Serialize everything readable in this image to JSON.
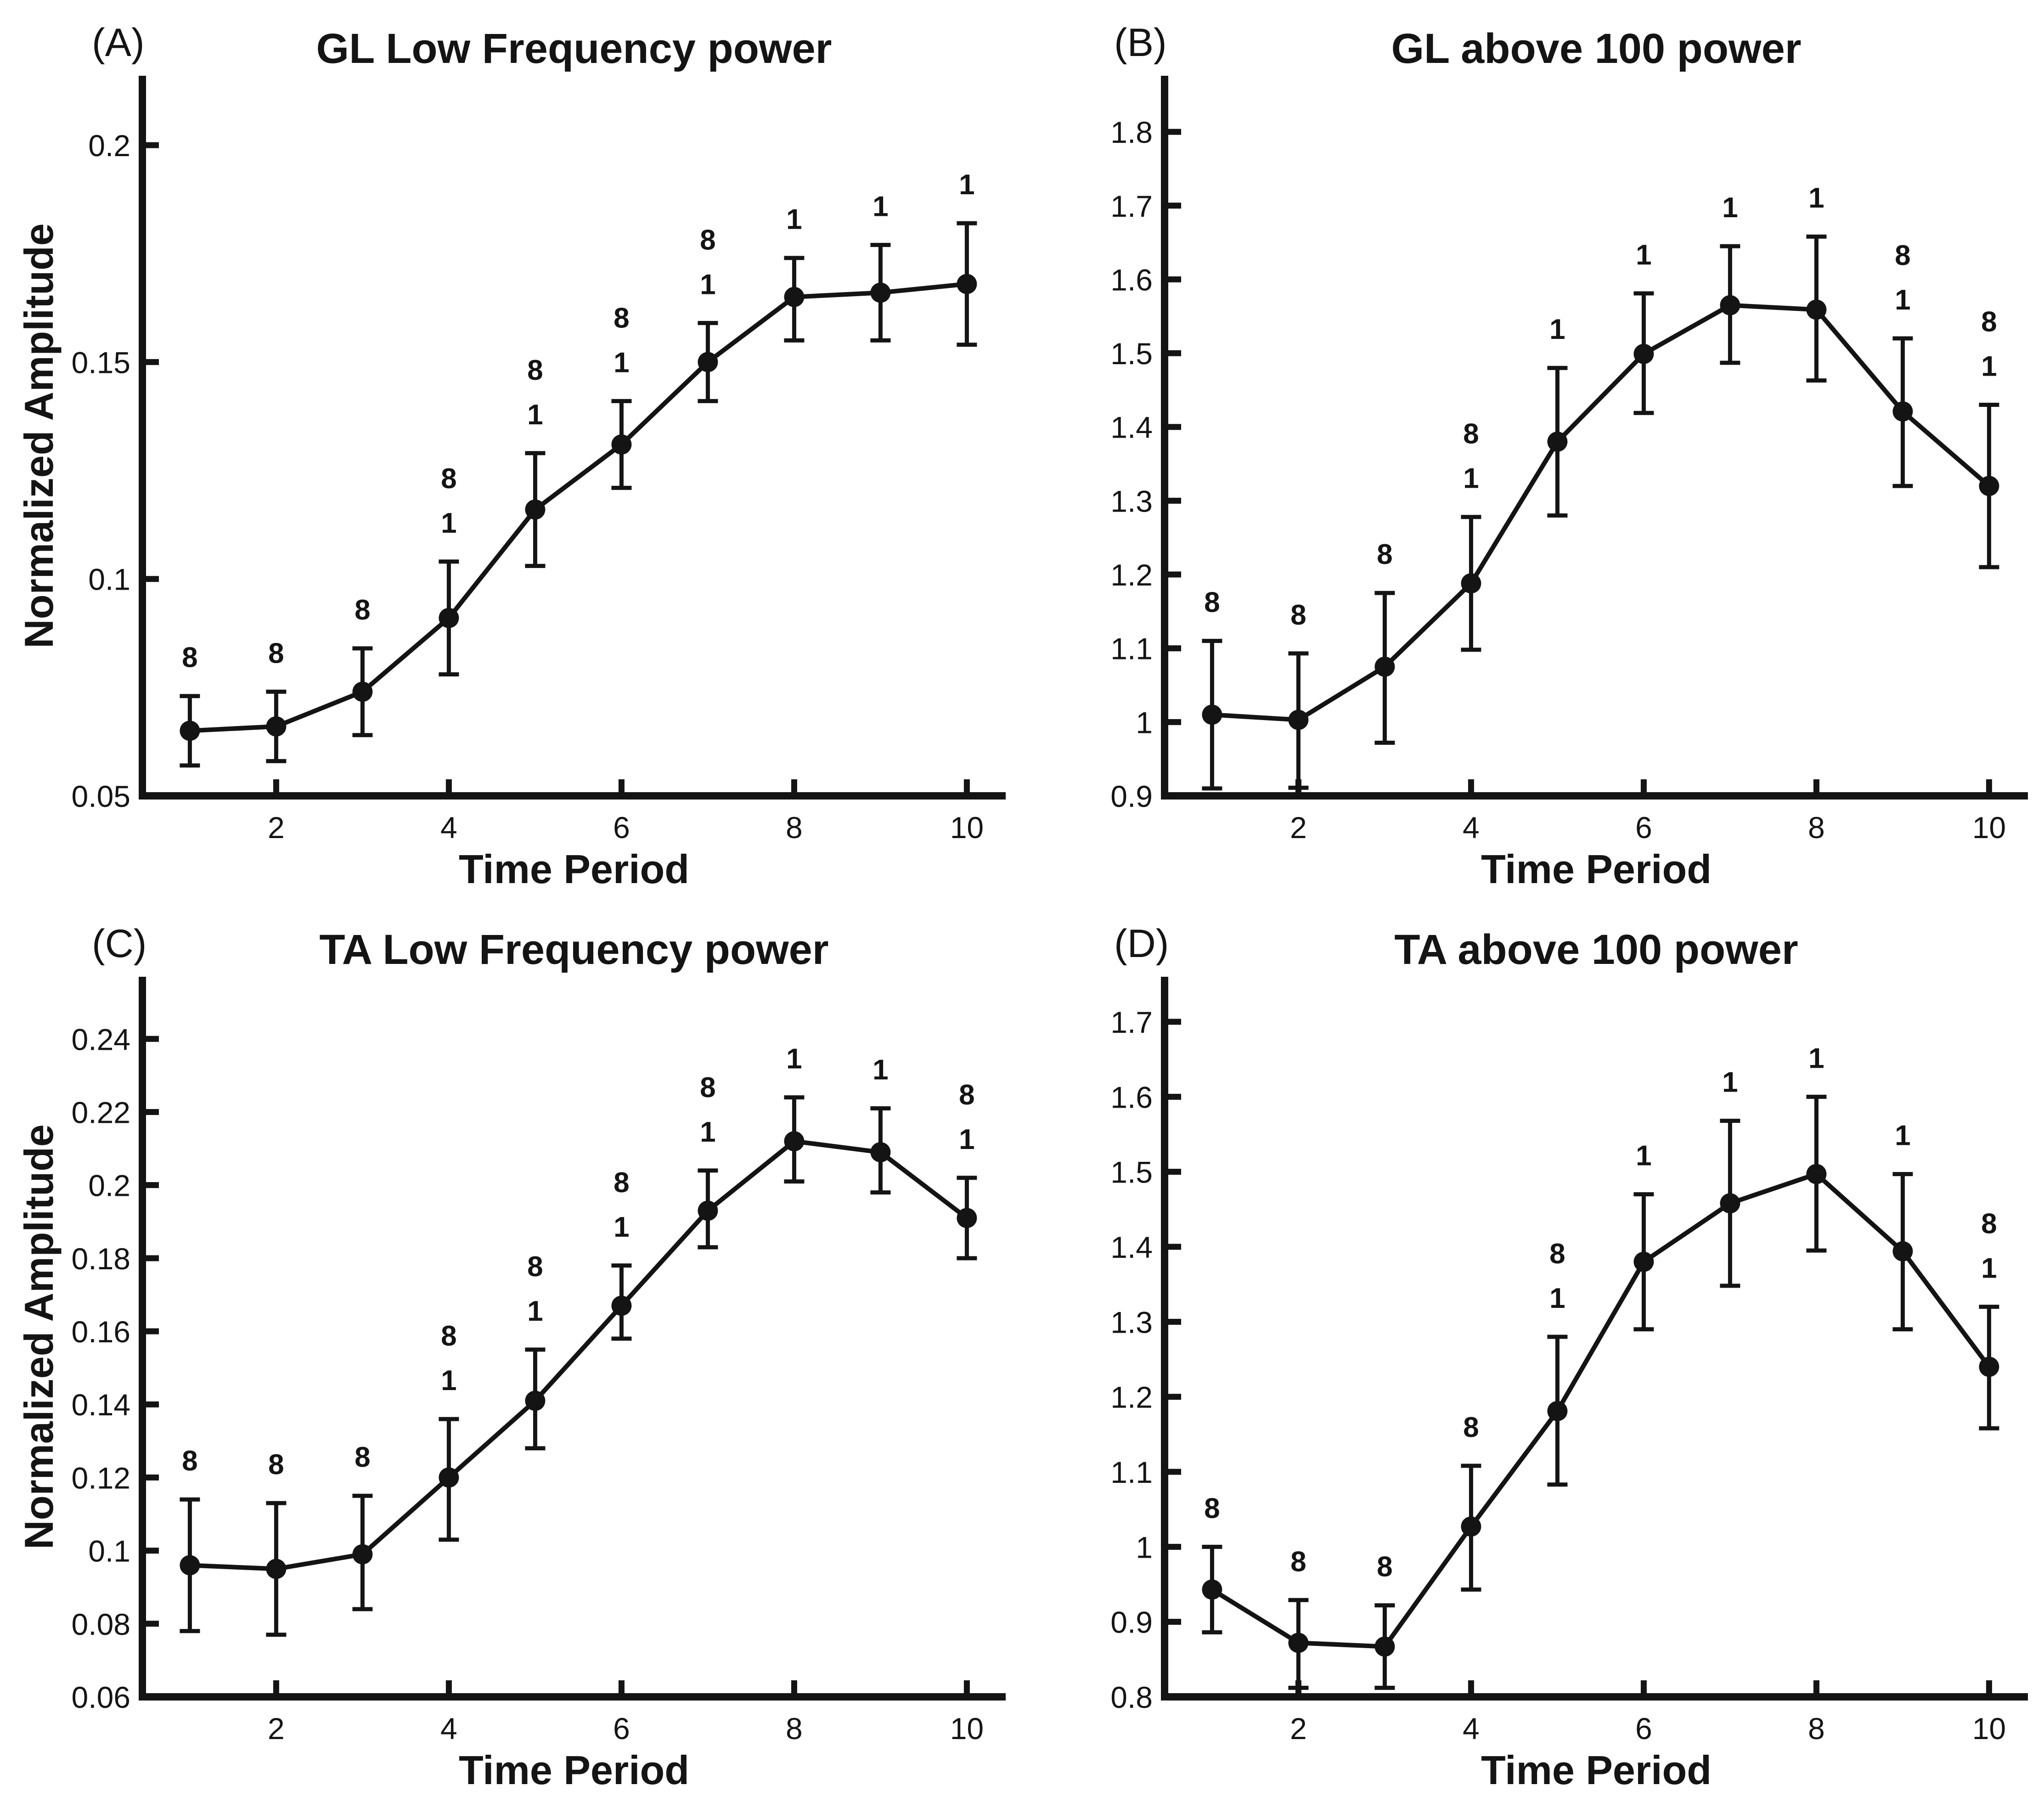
{
  "figure": {
    "background": "#ffffff",
    "ink_color": "#141414",
    "x_axis_label": "Time Period",
    "y_axis_label": "Normalized Amplitude",
    "x_values": [
      1,
      2,
      3,
      4,
      5,
      6,
      7,
      8,
      9,
      10
    ],
    "x_ticks": [
      2,
      4,
      6,
      8,
      10
    ],
    "x_tick_labels": [
      "2",
      "4",
      "6",
      "8",
      "10"
    ]
  },
  "chart_data": [
    {
      "type": "line",
      "panel": "A",
      "letter": "(A)",
      "title": "GL Low Frequency power",
      "xlabel": "Time Period",
      "ylabel": "Normalized Amplitude",
      "x": [
        1,
        2,
        3,
        4,
        5,
        6,
        7,
        8,
        9,
        10
      ],
      "values": [
        0.065,
        0.066,
        0.074,
        0.091,
        0.116,
        0.131,
        0.15,
        0.165,
        0.166,
        0.168
      ],
      "err_up": [
        0.008,
        0.008,
        0.01,
        0.013,
        0.013,
        0.01,
        0.009,
        0.009,
        0.011,
        0.014
      ],
      "err_down": [
        0.008,
        0.008,
        0.01,
        0.013,
        0.013,
        0.01,
        0.009,
        0.01,
        0.011,
        0.014
      ],
      "annotations": [
        [
          "8"
        ],
        [
          "8"
        ],
        [
          "8"
        ],
        [
          "8",
          "1"
        ],
        [
          "8",
          "1"
        ],
        [
          "8",
          "1"
        ],
        [
          "8",
          "1"
        ],
        [
          "1"
        ],
        [
          "1"
        ],
        [
          "1"
        ]
      ],
      "ylim": [
        0.05,
        0.216
      ],
      "yticks": [
        0.05,
        0.1,
        0.15,
        0.2
      ],
      "ytick_labels": [
        "0.05",
        "0.1",
        "0.15",
        "0.2"
      ],
      "grid": false,
      "legend": "none",
      "marker": "filled-circle",
      "error_bars": true
    },
    {
      "type": "line",
      "panel": "B",
      "letter": "(B)",
      "title": "GL above 100 power",
      "xlabel": "Time Period",
      "ylabel": "",
      "x": [
        1,
        2,
        3,
        4,
        5,
        6,
        7,
        8,
        9,
        10
      ],
      "values": [
        1.01,
        1.003,
        1.075,
        1.188,
        1.38,
        1.499,
        1.565,
        1.559,
        1.421,
        1.32
      ],
      "err_up": [
        0.1,
        0.09,
        0.1,
        0.09,
        0.1,
        0.082,
        0.08,
        0.099,
        0.099,
        0.11
      ],
      "err_down": [
        0.1,
        0.092,
        0.103,
        0.09,
        0.1,
        0.08,
        0.078,
        0.096,
        0.101,
        0.11
      ],
      "annotations": [
        [
          "8"
        ],
        [
          "8"
        ],
        [
          "8"
        ],
        [
          "8",
          "1"
        ],
        [
          "1"
        ],
        [
          "1"
        ],
        [
          "1"
        ],
        [
          "1"
        ],
        [
          "8",
          "1"
        ],
        [
          "8",
          "1"
        ]
      ],
      "ylim": [
        0.9,
        1.876
      ],
      "yticks": [
        0.9,
        1.0,
        1.1,
        1.2,
        1.3,
        1.4,
        1.5,
        1.6,
        1.7,
        1.8
      ],
      "ytick_labels": [
        "0.9",
        "1",
        "1.1",
        "1.2",
        "1.3",
        "1.4",
        "1.5",
        "1.6",
        "1.7",
        "1.8"
      ],
      "grid": false,
      "legend": "none",
      "marker": "filled-circle",
      "error_bars": true
    },
    {
      "type": "line",
      "panel": "C",
      "letter": "(C)",
      "title": "TA Low Frequency power",
      "xlabel": "Time Period",
      "ylabel": "Normalized Amplitude",
      "x": [
        1,
        2,
        3,
        4,
        5,
        6,
        7,
        8,
        9,
        10
      ],
      "values": [
        0.096,
        0.095,
        0.099,
        0.12,
        0.141,
        0.167,
        0.193,
        0.212,
        0.209,
        0.191
      ],
      "err_up": [
        0.018,
        0.018,
        0.016,
        0.016,
        0.014,
        0.011,
        0.011,
        0.012,
        0.012,
        0.011
      ],
      "err_down": [
        0.018,
        0.018,
        0.015,
        0.017,
        0.013,
        0.009,
        0.01,
        0.011,
        0.011,
        0.011
      ],
      "annotations": [
        [
          "8"
        ],
        [
          "8"
        ],
        [
          "8"
        ],
        [
          "8",
          "1"
        ],
        [
          "8",
          "1"
        ],
        [
          "8",
          "1"
        ],
        [
          "8",
          "1"
        ],
        [
          "1"
        ],
        [
          "1"
        ],
        [
          "8",
          "1"
        ]
      ],
      "ylim": [
        0.06,
        0.257
      ],
      "yticks": [
        0.06,
        0.08,
        0.1,
        0.12,
        0.14,
        0.16,
        0.18,
        0.2,
        0.22,
        0.24
      ],
      "ytick_labels": [
        "0.06",
        "0.08",
        "0.1",
        "0.12",
        "0.14",
        "0.16",
        "0.18",
        "0.2",
        "0.22",
        "0.24"
      ],
      "grid": false,
      "legend": "none",
      "marker": "filled-circle",
      "error_bars": true
    },
    {
      "type": "line",
      "panel": "D",
      "letter": "(D)",
      "title": "TA above 100 power",
      "xlabel": "Time Period",
      "ylabel": "",
      "x": [
        1,
        2,
        3,
        4,
        5,
        6,
        7,
        8,
        9,
        10
      ],
      "values": [
        0.943,
        0.872,
        0.867,
        1.027,
        1.181,
        1.38,
        1.458,
        1.497,
        1.394,
        1.24
      ],
      "err_up": [
        0.057,
        0.057,
        0.055,
        0.081,
        0.099,
        0.09,
        0.11,
        0.103,
        0.103,
        0.08
      ],
      "err_down": [
        0.057,
        0.06,
        0.055,
        0.084,
        0.098,
        0.09,
        0.11,
        0.102,
        0.104,
        0.082
      ],
      "annotations": [
        [
          "8"
        ],
        [
          "8"
        ],
        [
          "8"
        ],
        [
          "8"
        ],
        [
          "8",
          "1"
        ],
        [
          "1"
        ],
        [
          "1"
        ],
        [
          "1"
        ],
        [
          "1"
        ],
        [
          "8",
          "1"
        ]
      ],
      "ylim": [
        0.8,
        1.76
      ],
      "yticks": [
        0.8,
        0.9,
        1.0,
        1.1,
        1.2,
        1.3,
        1.4,
        1.5,
        1.6,
        1.7
      ],
      "ytick_labels": [
        "0.8",
        "0.9",
        "1",
        "1.1",
        "1.2",
        "1.3",
        "1.4",
        "1.5",
        "1.6",
        "1.7"
      ],
      "grid": false,
      "legend": "none",
      "marker": "filled-circle",
      "error_bars": true
    }
  ]
}
